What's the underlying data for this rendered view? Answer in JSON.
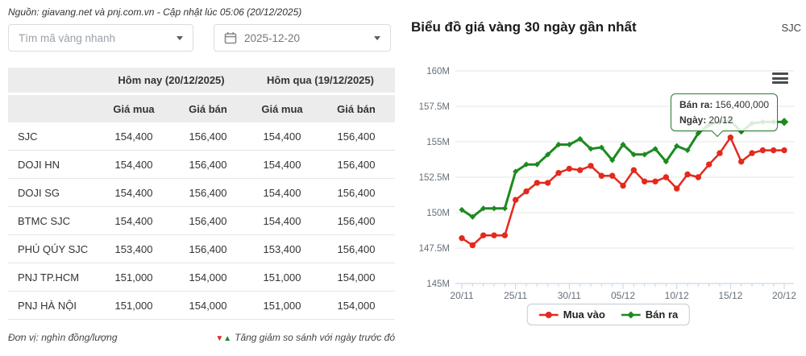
{
  "source_line": "Nguồn: giavang.net và pnj.com.vn - Cập nhật lúc 05:06 (20/12/2025)",
  "controls": {
    "search_placeholder": "Tìm mã vàng nhanh",
    "date_value": "2025-12-20"
  },
  "table": {
    "group_headers": [
      "Hôm nay (20/12/2025)",
      "Hôm qua (19/12/2025)"
    ],
    "sub_headers": [
      "Giá mua",
      "Giá bán",
      "Giá mua",
      "Giá bán"
    ],
    "rows": [
      {
        "name": "SJC",
        "values": [
          "154,400",
          "156,400",
          "154,400",
          "156,400"
        ]
      },
      {
        "name": "DOJI HN",
        "values": [
          "154,400",
          "156,400",
          "154,400",
          "156,400"
        ]
      },
      {
        "name": "DOJI SG",
        "values": [
          "154,400",
          "156,400",
          "154,400",
          "156,400"
        ]
      },
      {
        "name": "BTMC SJC",
        "values": [
          "154,400",
          "156,400",
          "154,400",
          "156,400"
        ]
      },
      {
        "name": "PHÚ QÚY SJC",
        "values": [
          "153,400",
          "156,400",
          "153,400",
          "156,400"
        ]
      },
      {
        "name": "PNJ TP.HCM",
        "values": [
          "151,000",
          "154,000",
          "151,000",
          "154,000"
        ]
      },
      {
        "name": "PNJ HÀ NỘI",
        "values": [
          "151,000",
          "154,000",
          "151,000",
          "154,000"
        ]
      }
    ],
    "unit_note": "Đơn vị: nghìn đồng/lượng",
    "down_glyph": "▼",
    "up_glyph": "▲",
    "legend_note": "Tăng giảm so sánh với ngày trước đó"
  },
  "chart": {
    "title": "Biểu đồ giá vàng 30 ngày gần nhất",
    "badge": "SJC",
    "tooltip": {
      "line1_label": "Bán ra:",
      "line1_value": "156,400,000",
      "line2_label": "Ngày:",
      "line2_value": "20/12",
      "border_color": "#2e7d32"
    }
  },
  "chart_data": {
    "type": "line",
    "title": "Biểu đồ giá vàng 30 ngày gần nhất",
    "x": [
      "20/11",
      "21/11",
      "22/11",
      "23/11",
      "24/11",
      "25/11",
      "26/11",
      "27/11",
      "28/11",
      "29/11",
      "30/11",
      "01/12",
      "02/12",
      "03/12",
      "04/12",
      "05/12",
      "06/12",
      "07/12",
      "08/12",
      "09/12",
      "10/12",
      "11/12",
      "12/12",
      "13/12",
      "14/12",
      "15/12",
      "16/12",
      "17/12",
      "18/12",
      "19/12",
      "20/12"
    ],
    "xtick_indices": [
      0,
      5,
      10,
      15,
      20,
      25,
      30
    ],
    "xtick_labels": [
      "20/11",
      "25/11",
      "30/11",
      "05/12",
      "10/12",
      "15/12",
      "20/12"
    ],
    "ytick_values": [
      160,
      157.5,
      155,
      152.5,
      150,
      147.5,
      145
    ],
    "ytick_labels": [
      "160M",
      "157.5M",
      "155M",
      "152.5M",
      "150M",
      "147.5M",
      "145M"
    ],
    "ylim": [
      145,
      160
    ],
    "grid": true,
    "legend_position": "bottom",
    "series": [
      {
        "name": "Mua vào",
        "color": "#e4291d",
        "marker": "circle",
        "values": [
          148.2,
          147.7,
          148.4,
          148.4,
          148.4,
          150.9,
          151.5,
          152.1,
          152.1,
          152.8,
          153.1,
          153.0,
          153.3,
          152.6,
          152.6,
          151.9,
          153.0,
          152.2,
          152.2,
          152.5,
          151.7,
          152.7,
          152.5,
          153.4,
          154.2,
          155.3,
          153.6,
          154.2,
          154.4,
          154.4,
          154.4
        ]
      },
      {
        "name": "Bán ra",
        "color": "#1d8a20",
        "marker": "diamond",
        "values": [
          150.2,
          149.7,
          150.3,
          150.3,
          150.3,
          152.9,
          153.4,
          153.4,
          154.1,
          154.8,
          154.8,
          155.2,
          154.5,
          154.6,
          153.7,
          154.8,
          154.1,
          154.1,
          154.5,
          153.6,
          154.7,
          154.4,
          155.6,
          156.2,
          156.4,
          156.5,
          155.7,
          156.3,
          156.4,
          156.4,
          156.4
        ]
      }
    ]
  }
}
